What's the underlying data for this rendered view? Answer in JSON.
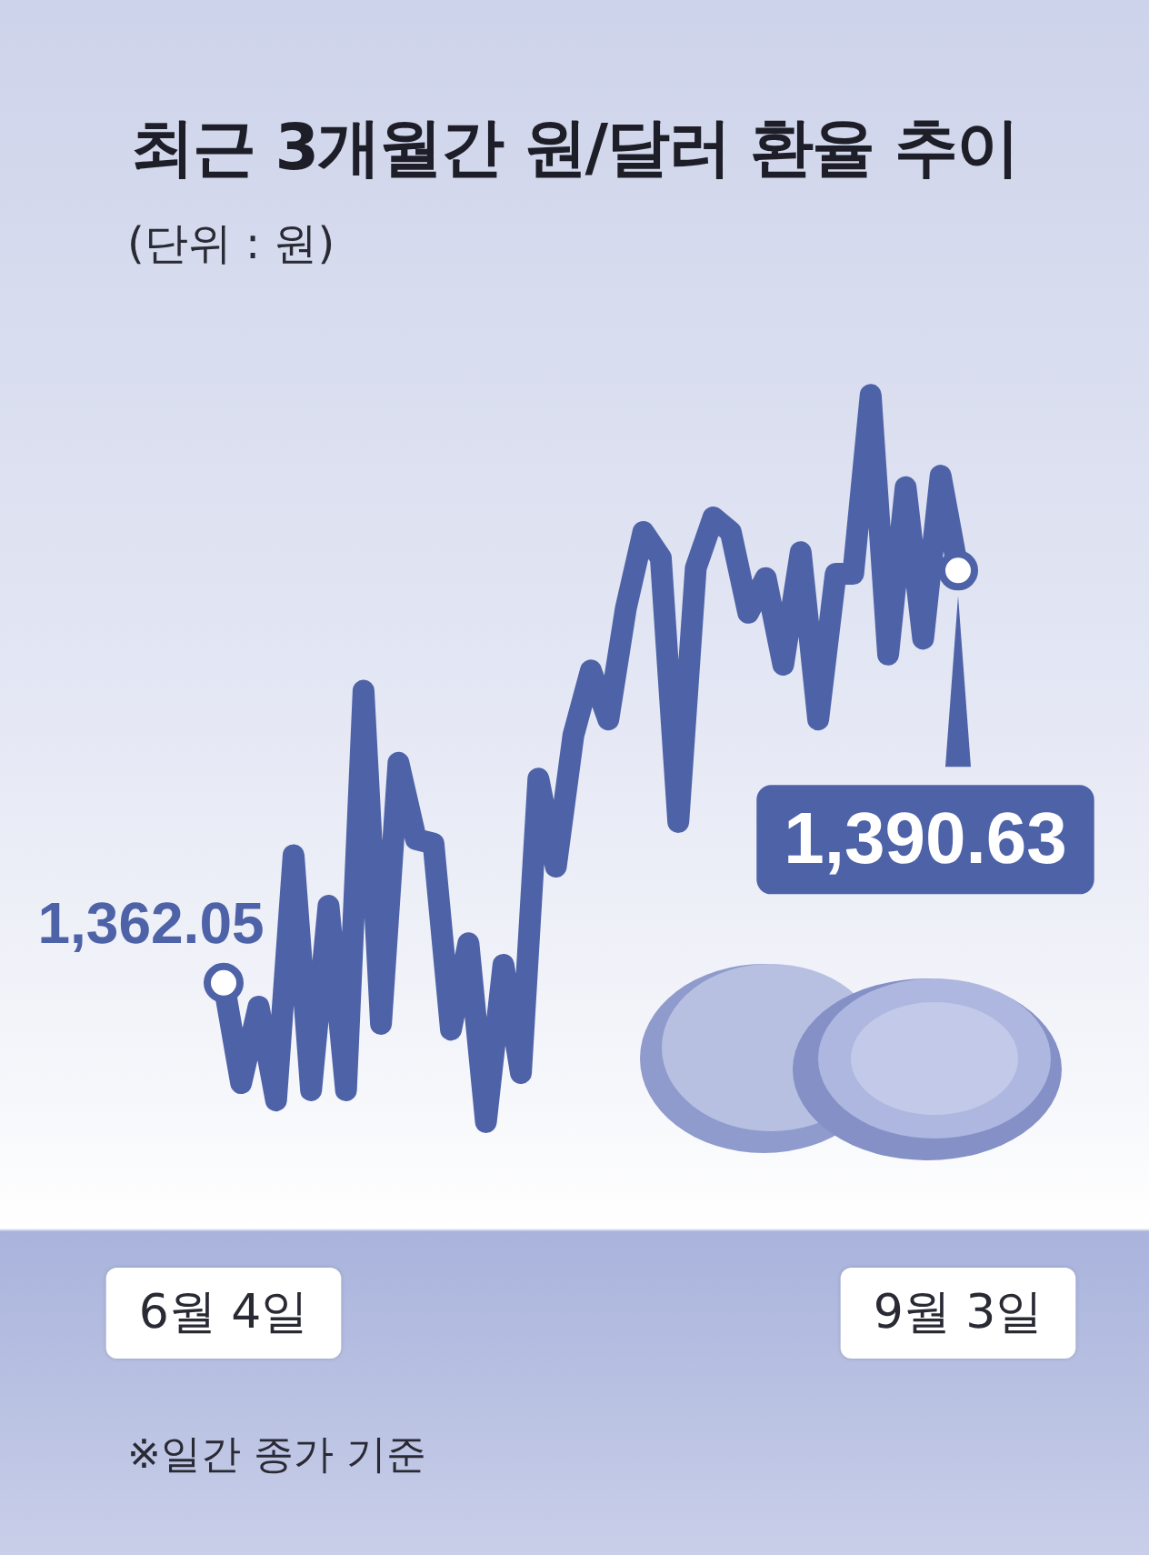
{
  "chart_data": {
    "type": "line",
    "title": "최근 3개월간 원/달러 환율 추이",
    "subtitle": "(단위 : 원)",
    "annotations": [
      "※일간 종가 기준"
    ],
    "categories": [
      "6월 4일",
      null,
      null,
      null,
      null,
      null,
      null,
      null,
      null,
      null,
      null,
      null,
      null,
      null,
      null,
      null,
      null,
      null,
      null,
      null,
      null,
      null,
      null,
      null,
      null,
      null,
      null,
      null,
      null,
      null,
      null,
      null,
      null,
      null,
      null,
      null,
      null,
      null,
      null,
      null,
      null,
      null,
      "9월 3일"
    ],
    "series": [
      {
        "color": "#4e62a8",
        "values": [
          1362.05,
          1355.1,
          1360.4,
          1353.9,
          1370.9,
          1354.6,
          1367.4,
          1354.6,
          1382.3,
          1359.2,
          1377.3,
          1372.0,
          1371.7,
          1358.8,
          1364.8,
          1352.4,
          1363.3,
          1355.8,
          1376.2,
          1370.1,
          1379.2,
          1383.7,
          1380.3,
          1388.0,
          1393.3,
          1391.5,
          1373.2,
          1390.8,
          1394.3,
          1393.3,
          1387.7,
          1390.1,
          1384.1,
          1391.9,
          1380.3,
          1390.4,
          1390.4,
          1402.8,
          1384.8,
          1396.4,
          1385.9,
          1397.2,
          1390.63
        ],
        "value_labels": [
          "1,362.05",
          null,
          null,
          null,
          null,
          null,
          null,
          null,
          null,
          null,
          null,
          null,
          null,
          null,
          null,
          null,
          null,
          null,
          null,
          null,
          null,
          null,
          null,
          null,
          null,
          null,
          null,
          null,
          null,
          null,
          null,
          null,
          null,
          null,
          null,
          null,
          null,
          null,
          null,
          null,
          null,
          null,
          "1,390.63"
        ]
      }
    ],
    "tick_labels": "x",
    "grid": false,
    "legend": false
  }
}
